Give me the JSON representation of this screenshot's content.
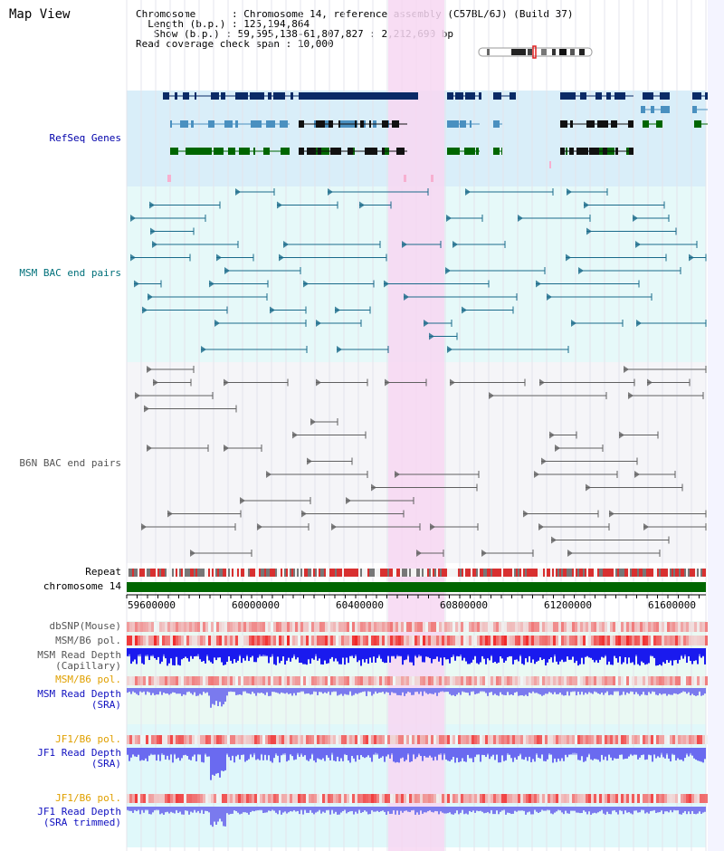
{
  "title": "Map View",
  "info": {
    "chromosome_label": "Chromosome",
    "chromosome_value": "Chromosome 14, reference assembly (C57BL/6J) (Build 37)",
    "length_label": "Length (b.p.)",
    "length_value": "125,194,864",
    "show_label": "Show (b.p.)",
    "show_value": "59,595,138-61,807,827 : 2,212,690 bp",
    "span_label": "Read coverage check span",
    "span_value": "10,000"
  },
  "tracks": {
    "refseq": "RefSeq Genes",
    "msm_bac": "MSM BAC end pairs",
    "b6n_bac": "B6N BAC end pairs",
    "repeat": "Repeat",
    "chromosome": "chromosome 14",
    "dbsnp": "dbSNP(Mouse)",
    "msm_pol": "MSM/B6 pol.",
    "msm_depth_cap_1": "MSM Read Depth",
    "msm_depth_cap_2": "(Capillary)",
    "msm_pol_2": "MSM/B6 pol.",
    "msm_depth_sra_1": "MSM Read Depth",
    "msm_depth_sra_2": "(SRA)",
    "jf1_pol": "JF1/B6 pol.",
    "jf1_depth_1": "JF1 Read Depth",
    "jf1_depth_2": "(SRA)",
    "jf1_pol_2": "JF1/B6 pol.",
    "jf1_trim_1": "JF1 Read Depth",
    "jf1_trim_2": "(SRA trimmed)"
  },
  "axis_ticks": [
    "59600000",
    "60000000",
    "60400000",
    "60800000",
    "61200000",
    "61600000"
  ],
  "colors": {
    "refseq_bg": "#d9eef9",
    "bac_msm_bg": "#e6f9f9",
    "highlight": "#f7d7f2",
    "chromosome_bar": "#006600",
    "depth_blue": "#1a1aee",
    "sra_blue": "#7a7aee",
    "pol_red": "#e83030"
  }
}
